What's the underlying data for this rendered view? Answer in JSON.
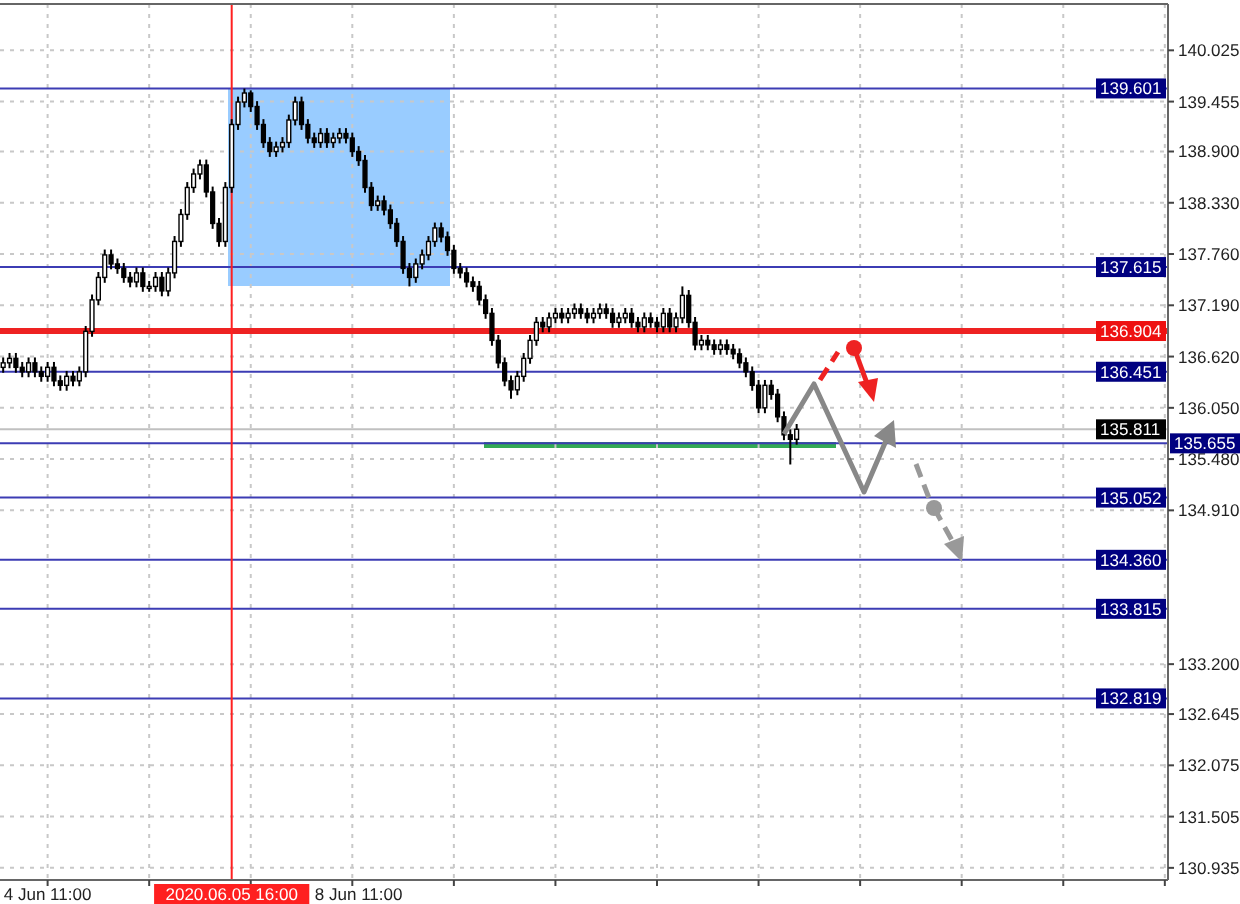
{
  "chart_data": {
    "type": "candlestick",
    "categories": [
      null,
      null,
      null,
      null,
      null,
      null,
      null,
      "4 Jun 11:00",
      null,
      null,
      null,
      null,
      null,
      null,
      null,
      null,
      null,
      null,
      null,
      null,
      null,
      null,
      null,
      null,
      null,
      null,
      null,
      null,
      null,
      null,
      null,
      null,
      null,
      null,
      null,
      null,
      "2020.06.05 16:00",
      null,
      null,
      null,
      null,
      null,
      null,
      null,
      null,
      null,
      null,
      null,
      null,
      null,
      null,
      null,
      null,
      null,
      null,
      null,
      "8 Jun 11:00",
      null,
      null,
      null,
      null,
      null,
      null,
      null,
      null,
      null,
      null,
      null,
      null,
      null,
      null,
      null,
      null,
      null,
      null,
      null,
      null,
      null,
      null,
      null,
      null,
      null,
      null,
      null,
      null,
      null,
      null,
      null,
      null,
      null,
      null,
      null,
      null,
      null,
      null,
      null,
      null,
      null,
      null,
      null,
      null,
      null,
      null,
      null,
      null,
      null,
      null,
      null,
      null,
      null,
      null,
      null,
      null,
      null,
      null,
      null,
      null,
      null,
      null,
      null,
      null,
      null,
      null,
      null,
      null,
      null,
      null,
      null,
      null,
      null,
      null,
      null,
      null,
      null,
      null,
      null,
      null,
      null,
      null,
      null,
      null,
      null,
      null,
      null,
      null,
      null,
      null,
      null,
      null,
      null,
      null,
      null,
      null,
      null,
      null,
      null,
      null,
      null,
      null,
      null,
      null,
      null,
      null,
      null,
      null,
      null,
      null,
      null,
      null,
      null,
      null,
      null,
      null,
      null,
      null,
      null,
      null,
      null,
      null,
      null,
      null,
      null,
      null,
      null
    ],
    "ohlc": [
      [
        136.5,
        136.61,
        136.44,
        136.55
      ],
      [
        136.55,
        136.66,
        136.49,
        136.6
      ],
      [
        136.6,
        136.66,
        136.44,
        136.5
      ],
      [
        136.5,
        136.56,
        136.39,
        136.45
      ],
      [
        136.45,
        136.61,
        136.39,
        136.55
      ],
      [
        136.55,
        136.61,
        136.39,
        136.45
      ],
      [
        136.45,
        136.51,
        136.34,
        136.4
      ],
      [
        136.4,
        136.56,
        136.34,
        136.5
      ],
      [
        136.5,
        136.56,
        136.29,
        136.35
      ],
      [
        136.35,
        136.41,
        136.24,
        136.3
      ],
      [
        136.3,
        136.46,
        136.24,
        136.4
      ],
      [
        136.4,
        136.46,
        136.29,
        136.35
      ],
      [
        136.35,
        136.51,
        136.29,
        136.45
      ],
      [
        136.45,
        136.96,
        136.39,
        136.9
      ],
      [
        136.9,
        137.31,
        136.84,
        137.25
      ],
      [
        137.25,
        137.56,
        137.19,
        137.5
      ],
      [
        137.5,
        137.81,
        137.44,
        137.75
      ],
      [
        137.75,
        137.81,
        137.59,
        137.65
      ],
      [
        137.65,
        137.71,
        137.54,
        137.6
      ],
      [
        137.6,
        137.66,
        137.44,
        137.5
      ],
      [
        137.5,
        137.56,
        137.39,
        137.45
      ],
      [
        137.45,
        137.61,
        137.39,
        137.55
      ],
      [
        137.55,
        137.61,
        137.34,
        137.4
      ],
      [
        137.4,
        137.46,
        137.34,
        137.4
      ],
      [
        137.4,
        137.56,
        137.34,
        137.5
      ],
      [
        137.5,
        137.56,
        137.29,
        137.35
      ],
      [
        137.35,
        137.61,
        137.29,
        137.55
      ],
      [
        137.55,
        137.96,
        137.49,
        137.9
      ],
      [
        137.9,
        138.26,
        137.84,
        138.2
      ],
      [
        138.2,
        138.56,
        138.14,
        138.5
      ],
      [
        138.5,
        138.71,
        138.44,
        138.65
      ],
      [
        138.65,
        138.81,
        138.59,
        138.75
      ],
      [
        138.75,
        138.81,
        138.39,
        138.45
      ],
      [
        138.45,
        138.51,
        138.04,
        138.1
      ],
      [
        138.1,
        138.16,
        137.84,
        137.9
      ],
      [
        137.9,
        138.56,
        137.84,
        138.5
      ],
      [
        138.5,
        139.26,
        138.44,
        139.2
      ],
      [
        139.2,
        139.51,
        139.14,
        139.45
      ],
      [
        139.45,
        139.6,
        139.39,
        139.55
      ],
      [
        139.55,
        139.58,
        139.34,
        139.4
      ],
      [
        139.4,
        139.46,
        139.14,
        139.2
      ],
      [
        139.2,
        139.26,
        138.94,
        139.0
      ],
      [
        139.0,
        139.06,
        138.84,
        138.9
      ],
      [
        138.9,
        139.01,
        138.84,
        138.95
      ],
      [
        138.95,
        139.06,
        138.89,
        139.0
      ],
      [
        139.0,
        139.31,
        138.94,
        139.25
      ],
      [
        139.25,
        139.51,
        139.19,
        139.45
      ],
      [
        139.45,
        139.51,
        139.14,
        139.2
      ],
      [
        139.2,
        139.26,
        138.99,
        139.05
      ],
      [
        139.05,
        139.11,
        138.94,
        139.0
      ],
      [
        139.0,
        139.16,
        138.94,
        139.1
      ],
      [
        139.1,
        139.16,
        138.94,
        139.0
      ],
      [
        139.0,
        139.11,
        138.94,
        139.05
      ],
      [
        139.05,
        139.16,
        138.99,
        139.1
      ],
      [
        139.1,
        139.16,
        138.99,
        139.05
      ],
      [
        139.05,
        139.11,
        138.84,
        138.9
      ],
      [
        138.9,
        138.96,
        138.74,
        138.8
      ],
      [
        138.8,
        138.86,
        138.44,
        138.5
      ],
      [
        138.5,
        138.56,
        138.24,
        138.3
      ],
      [
        138.3,
        138.41,
        138.24,
        138.35
      ],
      [
        138.35,
        138.41,
        138.19,
        138.25
      ],
      [
        138.25,
        138.31,
        138.04,
        138.1
      ],
      [
        138.1,
        138.16,
        137.84,
        137.9
      ],
      [
        137.9,
        137.96,
        137.54,
        137.6
      ],
      [
        137.6,
        137.66,
        137.4,
        137.5
      ],
      [
        137.5,
        137.71,
        137.44,
        137.65
      ],
      [
        137.65,
        137.81,
        137.59,
        137.75
      ],
      [
        137.75,
        137.96,
        137.69,
        137.9
      ],
      [
        137.9,
        138.11,
        137.84,
        138.05
      ],
      [
        138.05,
        138.11,
        137.89,
        137.95
      ],
      [
        137.95,
        138.01,
        137.74,
        137.8
      ],
      [
        137.8,
        137.86,
        137.54,
        137.6
      ],
      [
        137.6,
        137.66,
        137.49,
        137.55
      ],
      [
        137.55,
        137.61,
        137.39,
        137.45
      ],
      [
        137.45,
        137.51,
        137.34,
        137.4
      ],
      [
        137.4,
        137.46,
        137.19,
        137.25
      ],
      [
        137.25,
        137.31,
        137.04,
        137.1
      ],
      [
        137.1,
        137.16,
        136.74,
        136.8
      ],
      [
        136.8,
        136.86,
        136.49,
        136.55
      ],
      [
        136.55,
        136.61,
        136.29,
        136.35
      ],
      [
        136.35,
        136.41,
        136.15,
        136.25
      ],
      [
        136.25,
        136.46,
        136.19,
        136.4
      ],
      [
        136.4,
        136.66,
        136.34,
        136.6
      ],
      [
        136.6,
        136.86,
        136.54,
        136.8
      ],
      [
        136.8,
        137.06,
        136.74,
        137.0
      ],
      [
        137.0,
        137.06,
        136.89,
        136.95
      ],
      [
        136.95,
        137.11,
        136.89,
        137.05
      ],
      [
        137.05,
        137.16,
        136.99,
        137.1
      ],
      [
        137.1,
        137.16,
        136.99,
        137.05
      ],
      [
        137.05,
        137.16,
        136.99,
        137.1
      ],
      [
        137.1,
        137.21,
        137.04,
        137.15
      ],
      [
        137.15,
        137.21,
        137.04,
        137.1
      ],
      [
        137.1,
        137.16,
        136.99,
        137.05
      ],
      [
        137.05,
        137.16,
        136.99,
        137.1
      ],
      [
        137.1,
        137.21,
        137.04,
        137.15
      ],
      [
        137.15,
        137.21,
        137.04,
        137.1
      ],
      [
        137.1,
        137.16,
        136.94,
        137.0
      ],
      [
        137.0,
        137.11,
        136.94,
        137.05
      ],
      [
        137.05,
        137.16,
        136.99,
        137.1
      ],
      [
        137.1,
        137.16,
        136.94,
        137.0
      ],
      [
        137.0,
        137.06,
        136.89,
        136.95
      ],
      [
        136.95,
        137.11,
        136.89,
        137.05
      ],
      [
        137.05,
        137.11,
        136.94,
        137.0
      ],
      [
        137.0,
        137.06,
        136.89,
        136.95
      ],
      [
        136.95,
        137.16,
        136.89,
        137.1
      ],
      [
        137.1,
        137.16,
        136.89,
        136.95
      ],
      [
        136.95,
        137.11,
        136.89,
        137.05
      ],
      [
        137.05,
        137.4,
        136.99,
        137.3
      ],
      [
        137.3,
        137.36,
        136.94,
        137.0
      ],
      [
        137.0,
        137.06,
        136.69,
        136.75
      ],
      [
        136.75,
        136.86,
        136.69,
        136.8
      ],
      [
        136.8,
        136.86,
        136.69,
        136.75
      ],
      [
        136.75,
        136.81,
        136.64,
        136.7
      ],
      [
        136.7,
        136.81,
        136.64,
        136.75
      ],
      [
        136.75,
        136.81,
        136.64,
        136.7
      ],
      [
        136.7,
        136.76,
        136.59,
        136.65
      ],
      [
        136.65,
        136.71,
        136.49,
        136.55
      ],
      [
        136.55,
        136.61,
        136.39,
        136.45
      ],
      [
        136.45,
        136.51,
        136.24,
        136.3
      ],
      [
        136.3,
        136.36,
        135.99,
        136.05
      ],
      [
        136.05,
        136.36,
        135.99,
        136.3
      ],
      [
        136.3,
        136.36,
        136.14,
        136.2
      ],
      [
        136.2,
        136.26,
        135.89,
        135.95
      ],
      [
        135.95,
        136.01,
        135.69,
        135.75
      ],
      [
        135.75,
        135.81,
        135.42,
        135.7
      ],
      [
        135.7,
        135.87,
        135.64,
        135.811
      ],
      null,
      null,
      null,
      null,
      null,
      null,
      null,
      null,
      null,
      null,
      null,
      null,
      null,
      null,
      null,
      null,
      null,
      null,
      null,
      null,
      null,
      null,
      null,
      null,
      null,
      null,
      null,
      null,
      null,
      null,
      null,
      null,
      null,
      null,
      null,
      null,
      null,
      null,
      null,
      null,
      null,
      null,
      null,
      null,
      null,
      null,
      null,
      null,
      null,
      null,
      null,
      null,
      null,
      null,
      null,
      null,
      null,
      null
    ],
    "ylim": [
      130.8,
      140.54
    ],
    "yticks": [
      130.935,
      131.505,
      132.075,
      132.645,
      {
        "value": 133.2,
        "label": "133.200"
      },
      {
        "value": 134.91,
        "label": "134.910"
      },
      {
        "value": 135.48,
        "label": "135.480"
      },
      {
        "value": 136.05,
        "label": "136.050"
      },
      {
        "value": 136.62,
        "label": "136.620"
      },
      {
        "value": 137.19,
        "label": "137.190"
      },
      {
        "value": 137.76,
        "label": "137.760"
      },
      {
        "value": 138.33,
        "label": "138.330"
      },
      {
        "value": 138.9,
        "label": "138.900"
      },
      139.455,
      140.025
    ],
    "grid": true,
    "ref_lines": [
      {
        "axis": "y",
        "value": 139.601,
        "label": "139.601",
        "color": "#3c3cb4"
      },
      {
        "axis": "y",
        "value": 137.615,
        "label": "137.615",
        "color": "#3c3cb4"
      },
      {
        "axis": "y",
        "value": 136.904,
        "label": "136.904",
        "color": "#ee2222"
      },
      {
        "axis": "y",
        "value": 136.451,
        "label": "136.451",
        "color": "#3c3cb4"
      },
      {
        "axis": "y",
        "value": 135.811,
        "label": "135.811",
        "color": "#c0c0c0"
      },
      {
        "axis": "y",
        "value": 135.655,
        "label": "135.655",
        "color": "#3c3cb4"
      },
      {
        "axis": "y",
        "value": 135.052,
        "label": "135.052",
        "color": "#3c3cb4"
      },
      {
        "axis": "y",
        "value": 134.36,
        "label": "134.360",
        "color": "#3c3cb4"
      },
      {
        "axis": "y",
        "value": 133.815,
        "label": "133.815",
        "color": "#3c3cb4"
      },
      {
        "axis": "y",
        "value": 132.819,
        "label": "132.819",
        "color": "#3c3cb4"
      },
      {
        "axis": "x",
        "value": "2020.06.05 16:00",
        "color": "#ff2020"
      }
    ]
  }
}
